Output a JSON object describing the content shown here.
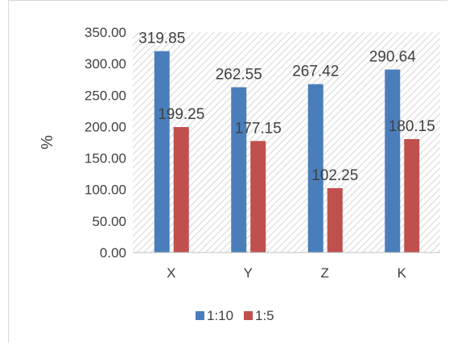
{
  "chart_data": {
    "type": "bar",
    "categories": [
      "X",
      "Y",
      "Z",
      "K"
    ],
    "series": [
      {
        "name": "1:10",
        "color": "#4a7ebb",
        "values": [
          319.85,
          262.55,
          267.42,
          290.64
        ]
      },
      {
        "name": "1:5",
        "color": "#c0504d",
        "values": [
          199.25,
          177.15,
          102.25,
          180.15
        ]
      }
    ],
    "data_labels": [
      [
        "319.85",
        "262.55",
        "267.42",
        "290.64"
      ],
      [
        "199.25",
        "177.15",
        "102.25",
        "180.15"
      ]
    ],
    "title": "",
    "xlabel": "",
    "ylabel": "%",
    "ylim": [
      0,
      350
    ],
    "yticks": [
      "0.00",
      "50.00",
      "100.00",
      "150.00",
      "200.00",
      "250.00",
      "300.00",
      "350.00"
    ],
    "grid": "hatched plot background",
    "legend": "bottom"
  }
}
